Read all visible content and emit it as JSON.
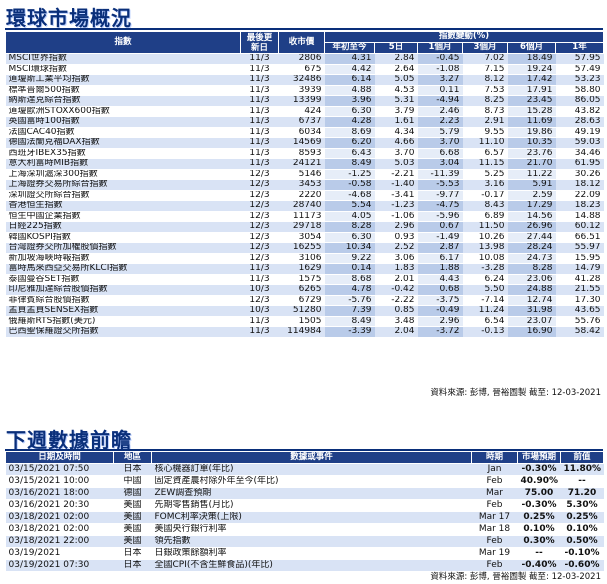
{
  "market": {
    "title": "環球市場概況",
    "headers": {
      "index": "指數",
      "date": "最後更新日",
      "close": "收市價",
      "change_group": "指數變動(%)",
      "ytd": "年初至今",
      "d5": "5日",
      "m1": "1個月",
      "m3": "3個月",
      "m6": "6個月",
      "y1": "1年"
    },
    "rows": [
      {
        "name": "MSCI世界指數",
        "date": "11/3",
        "close": "2806",
        "ytd": "4.31",
        "d5": "2.84",
        "m1": "-0.45",
        "m3": "7.02",
        "m6": "18.49",
        "y1": "57.95"
      },
      {
        "name": "MSCI環球指數",
        "date": "11/3",
        "close": "675",
        "ytd": "4.42",
        "d5": "2.64",
        "m1": "-1.08",
        "m3": "7.15",
        "m6": "19.24",
        "y1": "57.49"
      },
      {
        "name": "道瓊斯工業平均指數",
        "date": "11/3",
        "close": "32486",
        "ytd": "6.14",
        "d5": "5.05",
        "m1": "3.27",
        "m3": "8.12",
        "m6": "17.42",
        "y1": "53.23"
      },
      {
        "name": "標準普爾500指數",
        "date": "11/3",
        "close": "3939",
        "ytd": "4.88",
        "d5": "4.53",
        "m1": "0.11",
        "m3": "7.53",
        "m6": "17.91",
        "y1": "58.80"
      },
      {
        "name": "納斯達克綜合指數",
        "date": "11/3",
        "close": "13399",
        "ytd": "3.96",
        "d5": "5.31",
        "m1": "-4.94",
        "m3": "8.25",
        "m6": "23.45",
        "y1": "86.05"
      },
      {
        "name": "道瓊歐洲STOXX600指數",
        "date": "11/3",
        "close": "424",
        "ytd": "6.30",
        "d5": "3.79",
        "m1": "2.46",
        "m3": "8.73",
        "m6": "15.28",
        "y1": "43.82"
      },
      {
        "name": "英國富時100指數",
        "date": "11/3",
        "close": "6737",
        "ytd": "4.28",
        "d5": "1.61",
        "m1": "2.23",
        "m3": "2.91",
        "m6": "11.69",
        "y1": "28.63"
      },
      {
        "name": "法國CAC40指數",
        "date": "11/3",
        "close": "6034",
        "ytd": "8.69",
        "d5": "4.34",
        "m1": "5.79",
        "m3": "9.55",
        "m6": "19.86",
        "y1": "49.19"
      },
      {
        "name": "德國法蘭克福DAX指數",
        "date": "11/3",
        "close": "14569",
        "ytd": "6.20",
        "d5": "4.66",
        "m1": "3.70",
        "m3": "11.10",
        "m6": "10.35",
        "y1": "59.03"
      },
      {
        "name": "西班牙IBEX35指數",
        "date": "11/3",
        "close": "8593",
        "ytd": "6.43",
        "d5": "3.70",
        "m1": "6.68",
        "m3": "6.57",
        "m6": "23.76",
        "y1": "34.46"
      },
      {
        "name": "意大利富時MIB指數",
        "date": "11/3",
        "close": "24121",
        "ytd": "8.49",
        "d5": "5.03",
        "m1": "3.04",
        "m3": "11.15",
        "m6": "21.70",
        "y1": "61.95"
      },
      {
        "name": "上海深圳滬深300指數",
        "date": "12/3",
        "close": "5146",
        "ytd": "-1.25",
        "d5": "-2.21",
        "m1": "-11.39",
        "m3": "5.25",
        "m6": "11.22",
        "y1": "30.26"
      },
      {
        "name": "上海證券交易所綜合指數",
        "date": "12/3",
        "close": "3453",
        "ytd": "-0.58",
        "d5": "-1.40",
        "m1": "-5.53",
        "m3": "3.16",
        "m6": "5.91",
        "y1": "18.12"
      },
      {
        "name": "深圳證交所綜合指數",
        "date": "12/3",
        "close": "2220",
        "ytd": "-4.68",
        "d5": "-3.41",
        "m1": "-9.77",
        "m3": "-0.17",
        "m6": "2.59",
        "y1": "22.09"
      },
      {
        "name": "香港恒生指數",
        "date": "12/3",
        "close": "28740",
        "ytd": "5.54",
        "d5": "-1.23",
        "m1": "-4.75",
        "m3": "8.43",
        "m6": "17.29",
        "y1": "18.23"
      },
      {
        "name": "恒生中國企業指數",
        "date": "12/3",
        "close": "11173",
        "ytd": "4.05",
        "d5": "-1.06",
        "m1": "-5.96",
        "m3": "6.89",
        "m6": "14.56",
        "y1": "14.88"
      },
      {
        "name": "日經225指數",
        "date": "12/3",
        "close": "29718",
        "ytd": "8.28",
        "d5": "2.96",
        "m1": "0.67",
        "m3": "11.50",
        "m6": "26.96",
        "y1": "60.12"
      },
      {
        "name": "韓國KOSPI指數",
        "date": "12/3",
        "close": "3054",
        "ytd": "6.30",
        "d5": "0.93",
        "m1": "-1.49",
        "m3": "10.26",
        "m6": "27.44",
        "y1": "66.51"
      },
      {
        "name": "台灣證券交所加權股價指數",
        "date": "12/3",
        "close": "16255",
        "ytd": "10.34",
        "d5": "2.52",
        "m1": "2.87",
        "m3": "13.98",
        "m6": "28.24",
        "y1": "55.97"
      },
      {
        "name": "新加坡海峽時報指數",
        "date": "12/3",
        "close": "3106",
        "ytd": "9.22",
        "d5": "3.06",
        "m1": "6.17",
        "m3": "10.08",
        "m6": "24.73",
        "y1": "15.95"
      },
      {
        "name": "富時馬來西亞交易所KLCI指數",
        "date": "11/3",
        "close": "1629",
        "ytd": "0.14",
        "d5": "1.83",
        "m1": "1.88",
        "m3": "-3.28",
        "m6": "8.28",
        "y1": "14.79"
      },
      {
        "name": "泰國曼谷SET指數",
        "date": "11/3",
        "close": "1575",
        "ytd": "8.68",
        "d5": "2.01",
        "m1": "4.43",
        "m3": "6.24",
        "m6": "23.06",
        "y1": "41.28"
      },
      {
        "name": "印尼雅加達綜合股價指數",
        "date": "10/3",
        "close": "6265",
        "ytd": "4.78",
        "d5": "-0.42",
        "m1": "0.68",
        "m3": "5.50",
        "m6": "24.88",
        "y1": "21.55"
      },
      {
        "name": "菲律賓綜合股價指數",
        "date": "12/3",
        "close": "6729",
        "ytd": "-5.76",
        "d5": "-2.22",
        "m1": "-3.75",
        "m3": "-7.14",
        "m6": "12.74",
        "y1": "17.30"
      },
      {
        "name": "孟買孟買SENSEX指數",
        "date": "10/3",
        "close": "51280",
        "ytd": "7.39",
        "d5": "0.85",
        "m1": "-0.49",
        "m3": "11.24",
        "m6": "31.98",
        "y1": "43.65"
      },
      {
        "name": "俄羅斯RTS指數(美元)",
        "date": "11/3",
        "close": "1505",
        "ytd": "8.49",
        "d5": "3.48",
        "m1": "2.96",
        "m3": "6.54",
        "m6": "23.07",
        "y1": "55.76"
      },
      {
        "name": "巴西聖保羅證交所指數",
        "date": "11/3",
        "close": "114984",
        "ytd": "-3.39",
        "d5": "2.04",
        "m1": "-3.72",
        "m3": "-0.13",
        "m6": "16.90",
        "y1": "58.42"
      }
    ],
    "source": "資料來源: 彭博, 晉裕圖製 截至: 12-03-2021"
  },
  "calendar": {
    "title": "下週數據前瞻",
    "headers": {
      "datetime": "日期及時間",
      "region": "地區",
      "event": "數據或事件",
      "period": "時期",
      "forecast": "市場預期",
      "previous": "前值"
    },
    "rows": [
      {
        "datetime": "03/15/2021 07:50",
        "region": "日本",
        "event": "核心機器訂單(年比)",
        "period": "Jan",
        "forecast": "-0.30%",
        "previous": "11.80%"
      },
      {
        "datetime": "03/15/2021 10:00",
        "region": "中國",
        "event": "固定資產農村除外年至今(年比)",
        "period": "Feb",
        "forecast": "40.90%",
        "previous": "--"
      },
      {
        "datetime": "03/16/2021 18:00",
        "region": "德國",
        "event": "ZEW調查預期",
        "period": "Mar",
        "forecast": "75.00",
        "previous": "71.20"
      },
      {
        "datetime": "03/16/2021 20:30",
        "region": "美國",
        "event": "先期零售銷售(月比)",
        "period": "Feb",
        "forecast": "-0.30%",
        "previous": "5.30%"
      },
      {
        "datetime": "03/18/2021 02:00",
        "region": "美國",
        "event": "FOMC利率決策(上限)",
        "period": "Mar 17",
        "forecast": "0.25%",
        "previous": "0.25%"
      },
      {
        "datetime": "03/18/2021 02:00",
        "region": "美國",
        "event": "美國央行銀行利率",
        "period": "Mar 18",
        "forecast": "0.10%",
        "previous": "0.10%"
      },
      {
        "datetime": "03/18/2021 22:00",
        "region": "美國",
        "event": "領先指數",
        "period": "Feb",
        "forecast": "0.30%",
        "previous": "0.50%"
      },
      {
        "datetime": "03/19/2021",
        "region": "日本",
        "event": "日銀政策餘額利率",
        "period": "Mar 19",
        "forecast": "--",
        "previous": "-0.10%"
      },
      {
        "datetime": "03/19/2021 07:30",
        "region": "日本",
        "event": "全國CPI(不含生鮮食品)(年比)",
        "period": "Feb",
        "forecast": "-0.40%",
        "previous": "-0.60%"
      }
    ],
    "source": "資料來源: 彭博, 晉裕圖製 截至: 12-03-2021"
  }
}
